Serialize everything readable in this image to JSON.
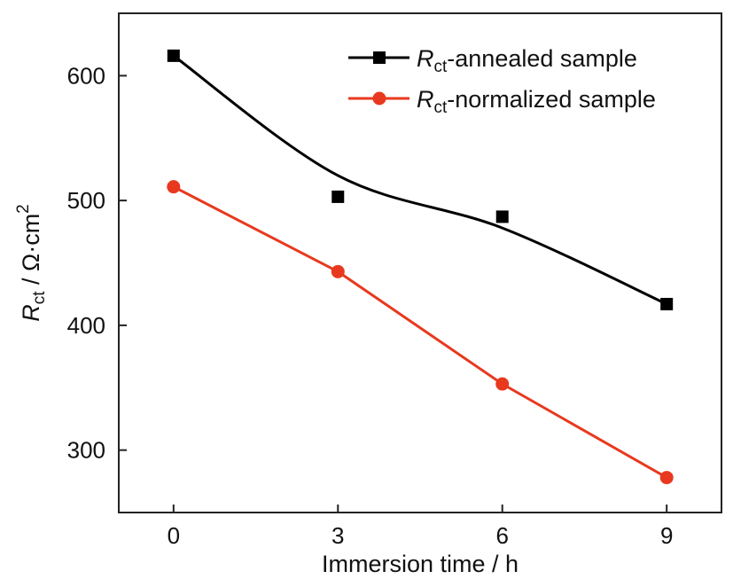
{
  "chart_data": {
    "type": "line",
    "title": "",
    "xlabel": "Immersion time / h",
    "ylabel": {
      "main": "R",
      "sub": "ct",
      "unit": " / Ω·cm",
      "sup": "2"
    },
    "xlim": [
      -1,
      10
    ],
    "ylim": [
      250,
      650
    ],
    "xticks": [
      0,
      3,
      6,
      9
    ],
    "xtick_labels": [
      "0",
      "3",
      "6",
      "9"
    ],
    "yticks": [
      300,
      400,
      500,
      600
    ],
    "ytick_labels": [
      "300",
      "400",
      "500",
      "600"
    ],
    "grid": false,
    "legend_position": "top-right",
    "x": [
      0,
      3,
      6,
      9
    ],
    "series": [
      {
        "name": "Rct-annealed sample",
        "legend": {
          "main": "R",
          "sub": "ct",
          "rest": "-annealed sample"
        },
        "values": [
          616,
          503,
          487,
          417
        ],
        "color": "#000000",
        "marker": "square",
        "line": "smooth-fit"
      },
      {
        "name": "Rct-normalized sample",
        "legend": {
          "main": "R",
          "sub": "ct",
          "rest": "-normalized sample"
        },
        "values": [
          511,
          443,
          353,
          278
        ],
        "color": "#e8391e",
        "marker": "circle",
        "line": "straight"
      }
    ]
  }
}
